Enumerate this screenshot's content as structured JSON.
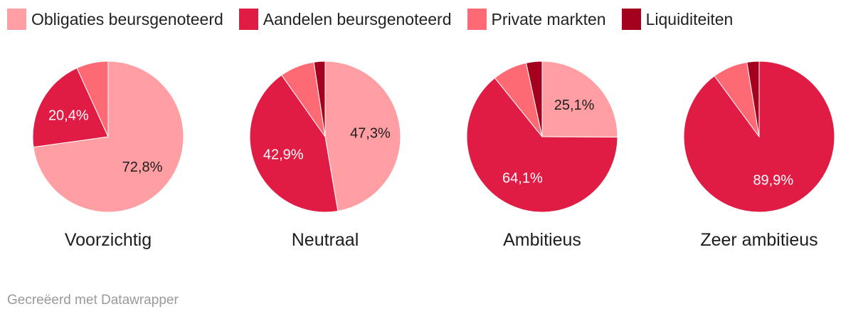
{
  "colors": {
    "obligaties": "#ff9fa3",
    "aandelen": "#e01c44",
    "private": "#fd6a73",
    "liquiditeiten": "#a3011e",
    "label_dark": "#1d1d1d",
    "label_light": "#ffffff"
  },
  "legend": [
    {
      "label": "Obligaties beursgenoteerd",
      "color": "#ff9fa3"
    },
    {
      "label": "Aandelen beursgenoteerd",
      "color": "#e01c44"
    },
    {
      "label": "Private markten",
      "color": "#fd6a73"
    },
    {
      "label": "Liquiditeiten",
      "color": "#a3011e"
    }
  ],
  "chart_data": [
    {
      "type": "pie",
      "title": "Voorzichtig",
      "slices": [
        {
          "name": "Obligaties beursgenoteerd",
          "value": 72.8,
          "label": "72,8%"
        },
        {
          "name": "Aandelen beursgenoteerd",
          "value": 20.4,
          "label": "20,4%"
        },
        {
          "name": "Private markten",
          "value": 6.8,
          "label": ""
        },
        {
          "name": "Liquiditeiten",
          "value": 0,
          "label": ""
        }
      ]
    },
    {
      "type": "pie",
      "title": "Neutraal",
      "slices": [
        {
          "name": "Obligaties beursgenoteerd",
          "value": 47.3,
          "label": "47,3%"
        },
        {
          "name": "Aandelen beursgenoteerd",
          "value": 42.9,
          "label": "42,9%"
        },
        {
          "name": "Private markten",
          "value": 7.4,
          "label": ""
        },
        {
          "name": "Liquiditeiten",
          "value": 2.4,
          "label": ""
        }
      ]
    },
    {
      "type": "pie",
      "title": "Ambitieus",
      "slices": [
        {
          "name": "Obligaties beursgenoteerd",
          "value": 25.1,
          "label": "25,1%"
        },
        {
          "name": "Aandelen beursgenoteerd",
          "value": 64.1,
          "label": "64,1%"
        },
        {
          "name": "Private markten",
          "value": 7.4,
          "label": ""
        },
        {
          "name": "Liquiditeiten",
          "value": 3.4,
          "label": ""
        }
      ]
    },
    {
      "type": "pie",
      "title": "Zeer ambitieus",
      "slices": [
        {
          "name": "Obligaties beursgenoteerd",
          "value": 0,
          "label": ""
        },
        {
          "name": "Aandelen beursgenoteerd",
          "value": 89.9,
          "label": "89,9%"
        },
        {
          "name": "Private markten",
          "value": 7.5,
          "label": ""
        },
        {
          "name": "Liquiditeiten",
          "value": 2.6,
          "label": ""
        }
      ]
    }
  ],
  "footer": {
    "credit": "Gecreëerd met Datawrapper"
  }
}
